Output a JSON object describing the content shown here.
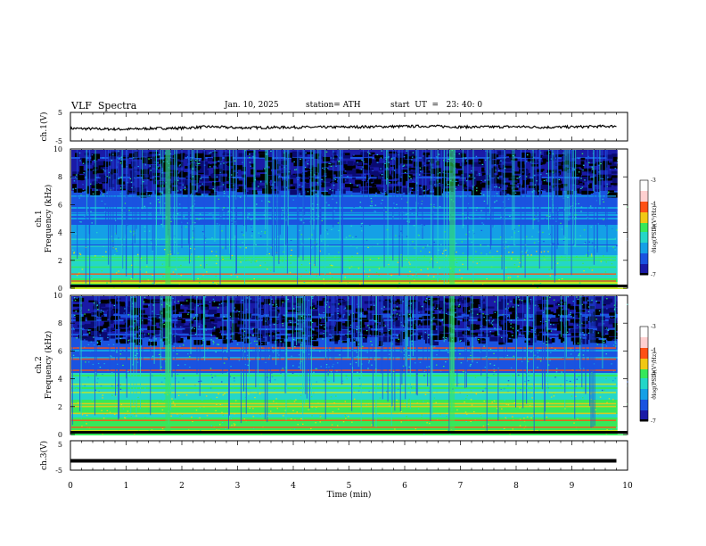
{
  "header": {
    "title": "VLF  Spectra",
    "date": "Jan. 10, 2025",
    "station": "station= ATH",
    "start": "start  UT  =   23: 40: 0"
  },
  "chart_data": [
    {
      "type": "line",
      "name": "ch1-waveform",
      "ylabel": "ch.1(V)",
      "ylim": [
        -5,
        5
      ],
      "yticks": [
        "5",
        "-5"
      ],
      "x": [
        0,
        0.5,
        1,
        1.5,
        2,
        2.5,
        3,
        3.5,
        4,
        4.5,
        5,
        5.5,
        6,
        6.5,
        7,
        7.5,
        8,
        8.5,
        9,
        9.5,
        9.8
      ],
      "values": [
        -0.6,
        -0.8,
        -0.9,
        -0.6,
        -0.5,
        0.0,
        -0.4,
        -0.3,
        -0.2,
        -0.2,
        -0.1,
        0.0,
        0.1,
        0.2,
        -0.1,
        -0.1,
        0.0,
        -0.2,
        -0.1,
        0.1,
        0.2
      ]
    },
    {
      "type": "heatmap",
      "name": "ch1-spectrogram",
      "ylabel": "ch.1\nFrequency  (kHz)",
      "ylim": [
        0,
        10
      ],
      "yticks": [
        "0",
        "2",
        "4",
        "6",
        "8",
        "10"
      ],
      "colorbar": {
        "label": "log(PSD)(V²/Hz)",
        "range": [
          -7,
          -3
        ],
        "ticks": [
          "-3",
          "-4",
          "-5",
          "-6",
          "-7"
        ]
      },
      "persistent_bands_khz": [
        0.5,
        1.0,
        1.5,
        2.0,
        2.2,
        3.0,
        3.5,
        4.3,
        5.4,
        6.6
      ],
      "bright_bursts_min": [
        1.75,
        6.85
      ],
      "colorscale": [
        "#000000",
        "#1a1aa6",
        "#1a53e0",
        "#14a0e6",
        "#24d6c8",
        "#36e85a",
        "#c8e81e",
        "#f0c814",
        "#ff5014",
        "#d81414",
        "#ffd0d0"
      ]
    },
    {
      "type": "heatmap",
      "name": "ch2-spectrogram",
      "ylabel": "ch.2\nFrequency  (kHz)",
      "ylim": [
        0,
        10
      ],
      "yticks": [
        "0",
        "2",
        "4",
        "6",
        "8",
        "10"
      ],
      "colorbar": {
        "label": "log(PSD)(V²/Hz)",
        "range": [
          -7,
          -3
        ],
        "ticks": [
          "-3",
          "-4",
          "-5",
          "-6",
          "-7"
        ]
      },
      "persistent_bands_khz": [
        0.5,
        1.0,
        1.5,
        2.0,
        2.2,
        3.0,
        3.6,
        4.6,
        5.4,
        6.2
      ],
      "bright_bursts_min": [
        1.75,
        6.85
      ]
    },
    {
      "type": "line",
      "name": "ch3-waveform",
      "ylabel": "ch.3(V)",
      "ylim": [
        -5,
        5
      ],
      "yticks": [
        "5",
        "-5"
      ],
      "x": [
        0,
        9.8
      ],
      "values": [
        -1.8,
        -1.8
      ]
    }
  ],
  "xaxis": {
    "xlabel": "Time  (min)",
    "xlim": [
      0,
      10
    ],
    "ticks": [
      "0",
      "1",
      "2",
      "3",
      "4",
      "5",
      "6",
      "7",
      "8",
      "9",
      "10"
    ]
  }
}
